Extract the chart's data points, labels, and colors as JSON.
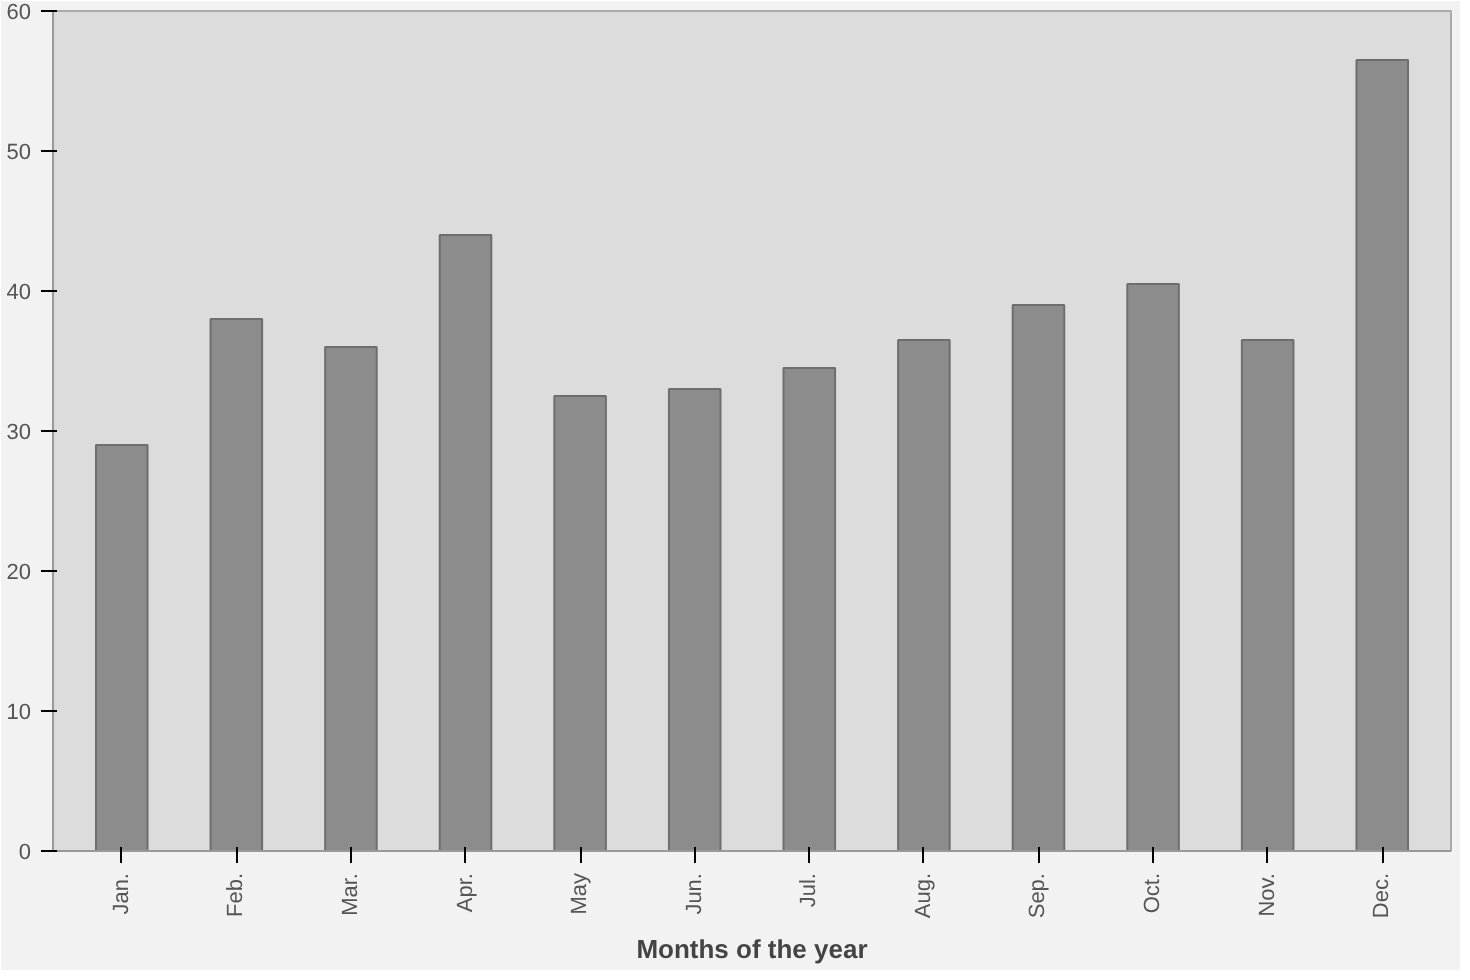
{
  "chart_data": {
    "type": "bar",
    "xlabel": "Months of the year",
    "categories": [
      "Jan.",
      "Feb.",
      "Mar.",
      "Apr.",
      "May",
      "Jun.",
      "Jul.",
      "Aug.",
      "Sep.",
      "Oct.",
      "Nov.",
      "Dec."
    ],
    "values": [
      29,
      38,
      36,
      44,
      32.5,
      33,
      34.5,
      36.5,
      39,
      40.5,
      36.5,
      56.5
    ],
    "color": "#8c8c8c",
    "ylim": [
      0,
      60
    ],
    "yticks": [
      0,
      10,
      20,
      30,
      40,
      50,
      60
    ],
    "grid": false
  }
}
